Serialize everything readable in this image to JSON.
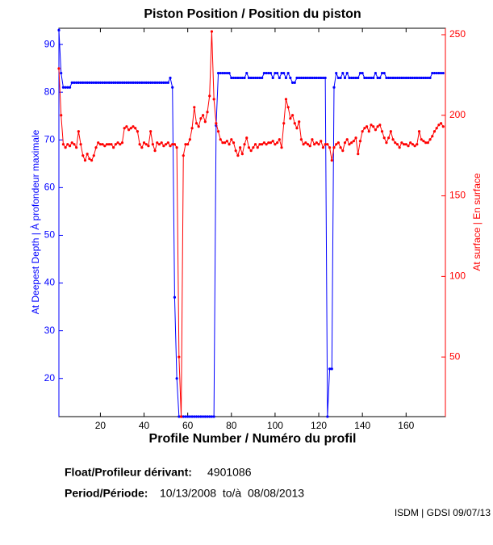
{
  "chart_data": {
    "type": "line",
    "title": "Piston Position / Position du piston",
    "xlabel": "Profile Number / Numéro du profil",
    "ylabel": "At Deepest Depth | À profondeur maximale",
    "y2label": "At surface | En surface",
    "xlim": [
      1,
      178
    ],
    "xticks": [
      20,
      40,
      60,
      80,
      100,
      120,
      140,
      160
    ],
    "ylim": [
      12,
      93.4
    ],
    "yticks": [
      20,
      30,
      40,
      50,
      60,
      70,
      80,
      90
    ],
    "y2lim": [
      13,
      254
    ],
    "y2ticks": [
      50,
      100,
      150,
      200,
      250
    ],
    "x": [
      1,
      2,
      3,
      4,
      5,
      6,
      7,
      8,
      9,
      10,
      11,
      12,
      13,
      14,
      15,
      16,
      17,
      18,
      19,
      20,
      21,
      22,
      23,
      24,
      25,
      26,
      27,
      28,
      29,
      30,
      31,
      32,
      33,
      34,
      35,
      36,
      37,
      38,
      39,
      40,
      41,
      42,
      43,
      44,
      45,
      46,
      47,
      48,
      49,
      50,
      51,
      52,
      53,
      54,
      55,
      56,
      57,
      58,
      59,
      60,
      61,
      62,
      63,
      64,
      65,
      66,
      67,
      68,
      69,
      70,
      71,
      72,
      73,
      74,
      75,
      76,
      77,
      78,
      79,
      80,
      81,
      82,
      83,
      84,
      85,
      86,
      87,
      88,
      89,
      90,
      91,
      92,
      93,
      94,
      95,
      96,
      97,
      98,
      99,
      100,
      101,
      102,
      103,
      104,
      105,
      106,
      107,
      108,
      109,
      110,
      111,
      112,
      113,
      114,
      115,
      116,
      117,
      118,
      119,
      120,
      121,
      122,
      123,
      124,
      125,
      126,
      127,
      128,
      129,
      130,
      131,
      132,
      133,
      134,
      135,
      136,
      137,
      138,
      139,
      140,
      141,
      142,
      143,
      144,
      145,
      146,
      147,
      148,
      149,
      150,
      151,
      152,
      153,
      154,
      155,
      156,
      157,
      158,
      159,
      160,
      161,
      162,
      163,
      164,
      165,
      166,
      167,
      168,
      169,
      170,
      171,
      172,
      173,
      174,
      175,
      176,
      177
    ],
    "series": [
      {
        "color": "#0000ff",
        "values": [
          93,
          84,
          81,
          81,
          81,
          81,
          82,
          82,
          82,
          82,
          82,
          82,
          82,
          82,
          82,
          82,
          82,
          82,
          82,
          82,
          82,
          82,
          82,
          82,
          82,
          82,
          82,
          82,
          82,
          82,
          82,
          82,
          82,
          82,
          82,
          82,
          82,
          82,
          82,
          82,
          82,
          82,
          82,
          82,
          82,
          82,
          82,
          82,
          82,
          82,
          82,
          83,
          81,
          37,
          20,
          12,
          12,
          12,
          12,
          12,
          12,
          12,
          12,
          12,
          12,
          12,
          12,
          12,
          12,
          12,
          12,
          12,
          73,
          84,
          84,
          84,
          84,
          84,
          84,
          83,
          83,
          83,
          83,
          83,
          83,
          83,
          84,
          83,
          83,
          83,
          83,
          83,
          83,
          83,
          84,
          84,
          84,
          84,
          83,
          84,
          84,
          83,
          84,
          84,
          83,
          84,
          83,
          82,
          82,
          83,
          83,
          83,
          83,
          83,
          83,
          83,
          83,
          83,
          83,
          83,
          83,
          83,
          83,
          12,
          22,
          22,
          81,
          84,
          83,
          83,
          84,
          83,
          84,
          83,
          83,
          83,
          83,
          83,
          84,
          84,
          83,
          83,
          83,
          83,
          83,
          84,
          83,
          83,
          84,
          84,
          83,
          83,
          83,
          83,
          83,
          83,
          83,
          83,
          83,
          83,
          83,
          83,
          83,
          83,
          83,
          83,
          83,
          83,
          83,
          83,
          83,
          84,
          84,
          84,
          84,
          84,
          84
        ]
      },
      {
        "color": "#ff0000",
        "axis": "y2",
        "values": [
          229,
          200,
          182,
          180,
          182,
          181,
          183,
          182,
          180,
          190,
          182,
          175,
          172,
          176,
          173,
          172,
          175,
          180,
          183,
          182,
          182,
          181,
          182,
          182,
          182,
          180,
          182,
          183,
          182,
          183,
          192,
          193,
          191,
          192,
          193,
          192,
          190,
          182,
          180,
          183,
          182,
          181,
          190,
          182,
          178,
          183,
          182,
          183,
          181,
          182,
          183,
          181,
          182,
          182,
          180,
          50,
          13,
          175,
          182,
          182,
          185,
          192,
          205,
          195,
          193,
          198,
          200,
          196,
          202,
          212,
          252,
          210,
          195,
          190,
          185,
          183,
          183,
          184,
          182,
          185,
          183,
          178,
          175,
          180,
          176,
          182,
          186,
          180,
          178,
          180,
          182,
          180,
          182,
          182,
          183,
          182,
          183,
          183,
          184,
          182,
          183,
          185,
          180,
          195,
          210,
          205,
          198,
          200,
          195,
          192,
          196,
          185,
          182,
          183,
          182,
          181,
          185,
          182,
          183,
          182,
          184,
          180,
          182,
          182,
          180,
          172,
          180,
          182,
          183,
          180,
          178,
          183,
          185,
          182,
          183,
          184,
          186,
          176,
          184,
          190,
          192,
          193,
          190,
          194,
          193,
          191,
          193,
          194,
          190,
          186,
          183,
          186,
          190,
          185,
          183,
          182,
          180,
          183,
          182,
          182,
          181,
          183,
          182,
          181,
          182,
          190,
          185,
          184,
          183,
          183,
          185,
          187,
          190,
          192,
          194,
          195,
          193
        ]
      }
    ]
  },
  "footer": {
    "float_label": "Float/Profileur dérivant:",
    "float_value": "4901086",
    "period_label": "Period/Période:",
    "period_value": "10/13/2008  to/à  08/08/2013",
    "credit": "ISDM | GDSI 09/07/13"
  }
}
